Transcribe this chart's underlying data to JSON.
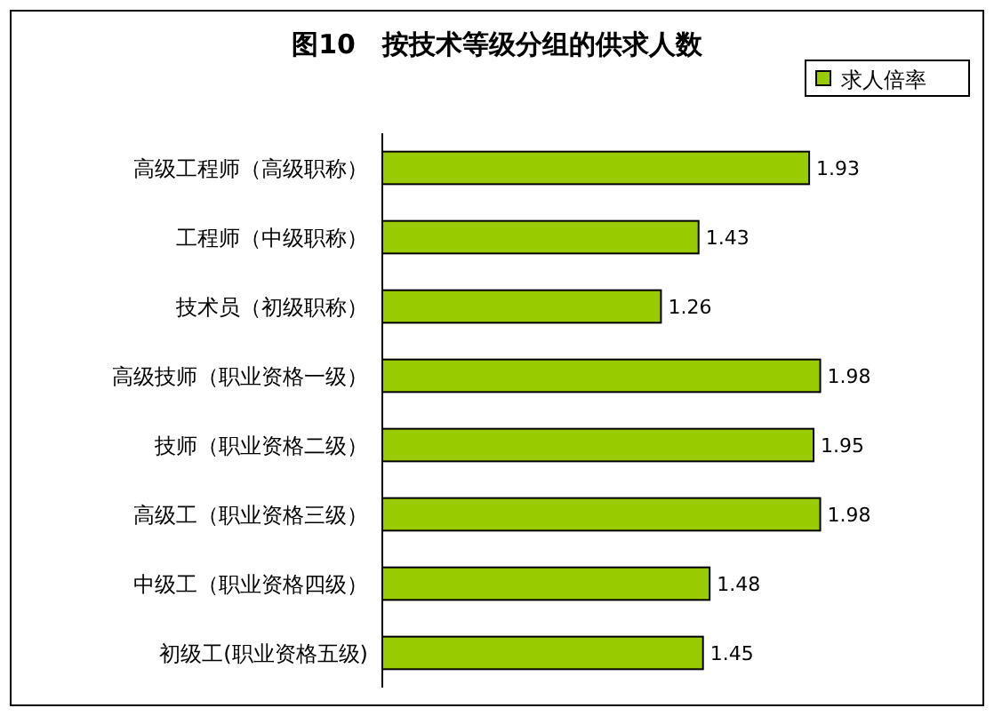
{
  "chart_data": {
    "type": "bar",
    "orientation": "horizontal",
    "title": "图10　按技术等级分组的供求人数",
    "categories": [
      "高级工程师（高级职称）",
      "工程师（中级职称）",
      "技术员（初级职称）",
      "高级技师（职业资格一级）",
      "技师（职业资格二级）",
      "高级工（职业资格三级）",
      "中级工（职业资格四级）",
      "初级工(职业资格五级)"
    ],
    "series": [
      {
        "name": "求人倍率",
        "color": "#99cc00",
        "values": [
          1.93,
          1.43,
          1.26,
          1.98,
          1.95,
          1.98,
          1.48,
          1.45
        ]
      }
    ],
    "data_labels": true,
    "legend": "top right"
  }
}
